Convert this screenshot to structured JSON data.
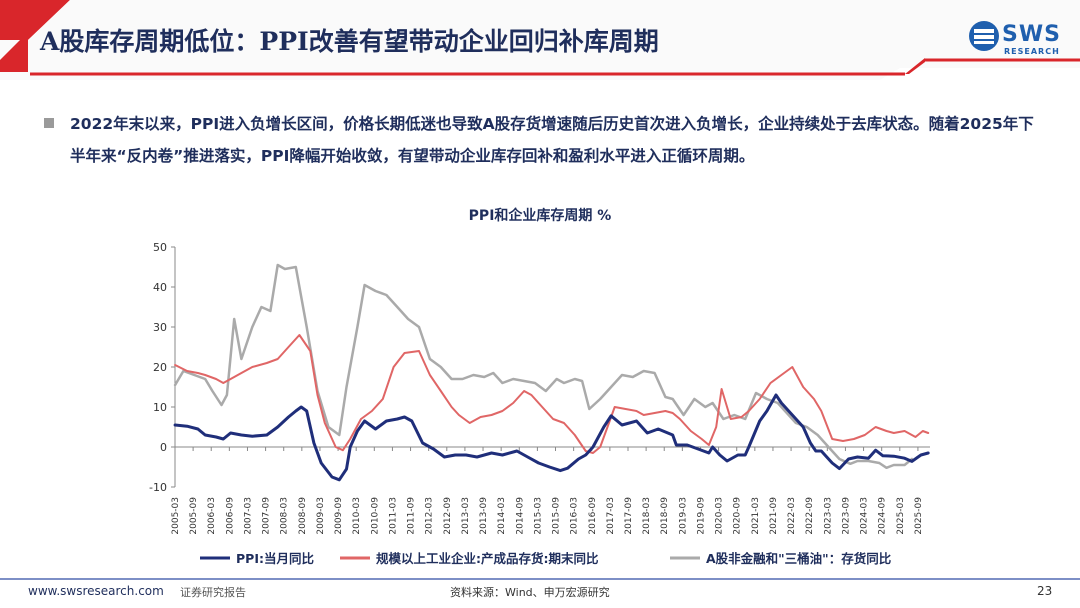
{
  "slide": {
    "title": "A股库存周期低位：PPI改善有望带动企业回归补库周期",
    "logo_text": "SWS",
    "logo_sub": "RESEARCH",
    "body": "2022年末以来，PPI进入负增长区间，价格长期低迷也导致A股存货增速随后历史首次进入负增长，企业持续处于去库状态。随着2025年下半年来“反内卷”推进落实，PPI降幅开始收敛，有望带动企业库存回补和盈利水平进入正循环周期。",
    "footer_url": "www.swsresearch.com",
    "footer_report": "证券研究报告",
    "footer_source": "资料来源：Wind、申万宏源研究",
    "page_number": "23"
  },
  "colors": {
    "title": "#1f2e5c",
    "accent_red": "#d9262b",
    "ppi": "#1f2e7a",
    "inventory": "#e06666",
    "ashare": "#aaaaaa"
  },
  "chart_data": {
    "type": "line",
    "title": "PPI和企业库存周期 %",
    "ylim": [
      -10,
      50
    ],
    "yticks": [
      -10,
      0,
      10,
      20,
      30,
      40,
      50
    ],
    "xlim": [
      2005.167,
      2026.0
    ],
    "xticks": [
      "2005-03",
      "2005-09",
      "2006-03",
      "2006-09",
      "2007-03",
      "2007-09",
      "2008-03",
      "2008-09",
      "2009-03",
      "2009-09",
      "2010-03",
      "2010-09",
      "2011-03",
      "2011-09",
      "2012-03",
      "2012-09",
      "2013-03",
      "2013-09",
      "2014-03",
      "2014-09",
      "2015-03",
      "2015-09",
      "2016-03",
      "2016-09",
      "2017-03",
      "2017-09",
      "2018-03",
      "2018-09",
      "2019-03",
      "2019-09",
      "2020-03",
      "2020-09",
      "2021-03",
      "2021-09",
      "2022-03",
      "2022-09",
      "2023-03",
      "2023-09",
      "2024-03",
      "2024-09",
      "2025-03",
      "2025-09"
    ],
    "legend_position": "bottom",
    "series": [
      {
        "name": "PPI:当月同比",
        "color": "#1f2e7a",
        "width": 3,
        "points": [
          [
            2005.17,
            5.5
          ],
          [
            2005.5,
            5.2
          ],
          [
            2005.8,
            4.5
          ],
          [
            2006.0,
            3
          ],
          [
            2006.3,
            2.5
          ],
          [
            2006.5,
            2
          ],
          [
            2006.7,
            3.5
          ],
          [
            2007.0,
            3
          ],
          [
            2007.3,
            2.7
          ],
          [
            2007.7,
            3
          ],
          [
            2008.0,
            5
          ],
          [
            2008.3,
            7.5
          ],
          [
            2008.5,
            9
          ],
          [
            2008.65,
            10
          ],
          [
            2008.8,
            9
          ],
          [
            2009.0,
            1
          ],
          [
            2009.2,
            -4
          ],
          [
            2009.5,
            -7.5
          ],
          [
            2009.7,
            -8.2
          ],
          [
            2009.9,
            -5.5
          ],
          [
            2010.0,
            0
          ],
          [
            2010.2,
            4
          ],
          [
            2010.4,
            6.5
          ],
          [
            2010.7,
            4.5
          ],
          [
            2011.0,
            6.5
          ],
          [
            2011.3,
            7
          ],
          [
            2011.5,
            7.5
          ],
          [
            2011.7,
            6.5
          ],
          [
            2012.0,
            1
          ],
          [
            2012.3,
            -0.5
          ],
          [
            2012.6,
            -2.5
          ],
          [
            2012.9,
            -2
          ],
          [
            2013.2,
            -2
          ],
          [
            2013.5,
            -2.5
          ],
          [
            2013.9,
            -1.5
          ],
          [
            2014.2,
            -2
          ],
          [
            2014.6,
            -1
          ],
          [
            2014.9,
            -2.5
          ],
          [
            2015.2,
            -4
          ],
          [
            2015.5,
            -5
          ],
          [
            2015.8,
            -5.9
          ],
          [
            2016.0,
            -5.3
          ],
          [
            2016.3,
            -3
          ],
          [
            2016.5,
            -2
          ],
          [
            2016.7,
            0
          ],
          [
            2017.0,
            5
          ],
          [
            2017.2,
            7.8
          ],
          [
            2017.5,
            5.5
          ],
          [
            2017.9,
            6.5
          ],
          [
            2018.2,
            3.5
          ],
          [
            2018.5,
            4.5
          ],
          [
            2018.9,
            3
          ],
          [
            2019.0,
            0.5
          ],
          [
            2019.3,
            0.5
          ],
          [
            2019.6,
            -0.5
          ],
          [
            2019.9,
            -1.5
          ],
          [
            2020.0,
            0
          ],
          [
            2020.2,
            -2
          ],
          [
            2020.4,
            -3.5
          ],
          [
            2020.7,
            -2
          ],
          [
            2020.9,
            -2
          ],
          [
            2021.0,
            0
          ],
          [
            2021.3,
            6.5
          ],
          [
            2021.5,
            9
          ],
          [
            2021.75,
            13
          ],
          [
            2021.9,
            11
          ],
          [
            2022.2,
            8
          ],
          [
            2022.5,
            5
          ],
          [
            2022.7,
            1
          ],
          [
            2022.85,
            -1
          ],
          [
            2023.0,
            -1
          ],
          [
            2023.3,
            -4
          ],
          [
            2023.5,
            -5.4
          ],
          [
            2023.75,
            -3
          ],
          [
            2024.0,
            -2.5
          ],
          [
            2024.3,
            -2.8
          ],
          [
            2024.5,
            -0.8
          ],
          [
            2024.7,
            -2.2
          ],
          [
            2025.0,
            -2.3
          ],
          [
            2025.3,
            -2.8
          ],
          [
            2025.5,
            -3.6
          ],
          [
            2025.75,
            -2
          ],
          [
            2025.95,
            -1.5
          ]
        ]
      },
      {
        "name": "规模以上工业企业:产成品存货:期末同比",
        "color": "#e06666",
        "width": 2,
        "points": [
          [
            2005.17,
            20.5
          ],
          [
            2005.5,
            19
          ],
          [
            2005.8,
            18.5
          ],
          [
            2006.0,
            18
          ],
          [
            2006.3,
            17
          ],
          [
            2006.5,
            16
          ],
          [
            2006.7,
            17
          ],
          [
            2007.0,
            18.5
          ],
          [
            2007.3,
            20
          ],
          [
            2007.7,
            21
          ],
          [
            2008.0,
            22
          ],
          [
            2008.3,
            25
          ],
          [
            2008.6,
            28
          ],
          [
            2008.9,
            24
          ],
          [
            2009.1,
            13
          ],
          [
            2009.3,
            6
          ],
          [
            2009.6,
            0
          ],
          [
            2009.8,
            -0.8
          ],
          [
            2010.0,
            2
          ],
          [
            2010.3,
            7
          ],
          [
            2010.6,
            9
          ],
          [
            2010.9,
            12
          ],
          [
            2011.2,
            20
          ],
          [
            2011.5,
            23.5
          ],
          [
            2011.9,
            24
          ],
          [
            2012.2,
            18
          ],
          [
            2012.5,
            14
          ],
          [
            2012.8,
            10
          ],
          [
            2013.0,
            8
          ],
          [
            2013.3,
            6
          ],
          [
            2013.6,
            7.5
          ],
          [
            2013.9,
            8
          ],
          [
            2014.2,
            9
          ],
          [
            2014.5,
            11
          ],
          [
            2014.8,
            14
          ],
          [
            2015.0,
            13
          ],
          [
            2015.3,
            10
          ],
          [
            2015.6,
            7
          ],
          [
            2015.9,
            6
          ],
          [
            2016.2,
            3
          ],
          [
            2016.5,
            -1
          ],
          [
            2016.7,
            -1.5
          ],
          [
            2016.9,
            0
          ],
          [
            2017.1,
            5
          ],
          [
            2017.3,
            10
          ],
          [
            2017.6,
            9.5
          ],
          [
            2017.9,
            9
          ],
          [
            2018.1,
            8
          ],
          [
            2018.4,
            8.5
          ],
          [
            2018.7,
            9
          ],
          [
            2018.9,
            8.5
          ],
          [
            2019.1,
            7
          ],
          [
            2019.4,
            4
          ],
          [
            2019.7,
            2
          ],
          [
            2019.9,
            0.5
          ],
          [
            2020.1,
            5
          ],
          [
            2020.25,
            14.5
          ],
          [
            2020.5,
            7
          ],
          [
            2020.8,
            7.5
          ],
          [
            2021.0,
            9
          ],
          [
            2021.3,
            12
          ],
          [
            2021.6,
            16
          ],
          [
            2021.9,
            18
          ],
          [
            2022.2,
            20
          ],
          [
            2022.5,
            15
          ],
          [
            2022.8,
            12
          ],
          [
            2023.0,
            9
          ],
          [
            2023.3,
            2
          ],
          [
            2023.6,
            1.5
          ],
          [
            2023.9,
            2
          ],
          [
            2024.2,
            3
          ],
          [
            2024.5,
            5
          ],
          [
            2024.8,
            4
          ],
          [
            2025.0,
            3.5
          ],
          [
            2025.3,
            4
          ],
          [
            2025.6,
            2.5
          ],
          [
            2025.8,
            4
          ],
          [
            2025.95,
            3.5
          ]
        ]
      },
      {
        "name": "A股非金融和\"三桶油\"：存货同比",
        "color": "#aaaaaa",
        "width": 2.5,
        "points": [
          [
            2005.17,
            15.5
          ],
          [
            2005.4,
            19
          ],
          [
            2005.7,
            18
          ],
          [
            2006.0,
            17
          ],
          [
            2006.2,
            14
          ],
          [
            2006.45,
            10.5
          ],
          [
            2006.6,
            13
          ],
          [
            2006.8,
            32
          ],
          [
            2007.0,
            22
          ],
          [
            2007.3,
            30
          ],
          [
            2007.55,
            35
          ],
          [
            2007.8,
            34
          ],
          [
            2008.0,
            45.5
          ],
          [
            2008.2,
            44.5
          ],
          [
            2008.5,
            45
          ],
          [
            2008.8,
            30
          ],
          [
            2009.1,
            14
          ],
          [
            2009.4,
            5
          ],
          [
            2009.7,
            3
          ],
          [
            2009.9,
            15
          ],
          [
            2010.2,
            30
          ],
          [
            2010.4,
            40.5
          ],
          [
            2010.7,
            39
          ],
          [
            2011.0,
            38
          ],
          [
            2011.3,
            35
          ],
          [
            2011.6,
            32
          ],
          [
            2011.9,
            30
          ],
          [
            2012.2,
            22
          ],
          [
            2012.5,
            20
          ],
          [
            2012.8,
            17
          ],
          [
            2013.1,
            17
          ],
          [
            2013.4,
            18
          ],
          [
            2013.7,
            17.5
          ],
          [
            2013.95,
            18.5
          ],
          [
            2014.2,
            16
          ],
          [
            2014.5,
            17
          ],
          [
            2014.8,
            16.5
          ],
          [
            2015.1,
            16
          ],
          [
            2015.4,
            14
          ],
          [
            2015.7,
            17
          ],
          [
            2015.9,
            16
          ],
          [
            2016.2,
            17
          ],
          [
            2016.4,
            16.5
          ],
          [
            2016.6,
            9.5
          ],
          [
            2016.9,
            12
          ],
          [
            2017.2,
            15
          ],
          [
            2017.5,
            18
          ],
          [
            2017.8,
            17.5
          ],
          [
            2018.1,
            19
          ],
          [
            2018.4,
            18.5
          ],
          [
            2018.7,
            12.5
          ],
          [
            2018.9,
            12
          ],
          [
            2019.2,
            8
          ],
          [
            2019.5,
            12
          ],
          [
            2019.8,
            10
          ],
          [
            2020.0,
            11
          ],
          [
            2020.3,
            7
          ],
          [
            2020.6,
            8
          ],
          [
            2020.9,
            7
          ],
          [
            2021.2,
            13.5
          ],
          [
            2021.5,
            12
          ],
          [
            2021.8,
            11
          ],
          [
            2022.0,
            9
          ],
          [
            2022.3,
            6
          ],
          [
            2022.6,
            5
          ],
          [
            2022.9,
            3
          ],
          [
            2023.2,
            0
          ],
          [
            2023.5,
            -3
          ],
          [
            2023.8,
            -4.2
          ],
          [
            2024.0,
            -3.5
          ],
          [
            2024.3,
            -3.5
          ],
          [
            2024.6,
            -4
          ],
          [
            2024.8,
            -5.2
          ],
          [
            2025.0,
            -4.5
          ],
          [
            2025.3,
            -4.5
          ],
          [
            2025.5,
            -3
          ]
        ]
      }
    ]
  }
}
